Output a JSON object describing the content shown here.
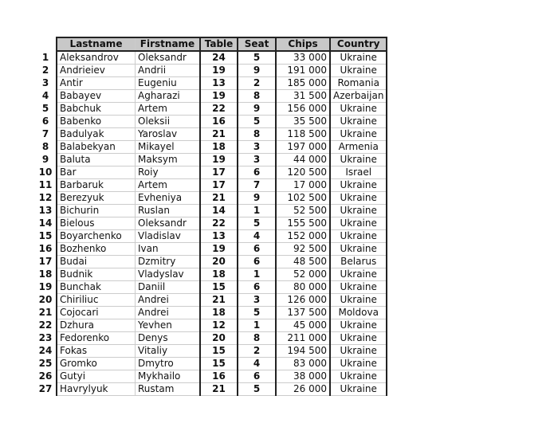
{
  "headers": {
    "lastname": "Lastname",
    "firstname": "Firstname",
    "table": "Table",
    "seat": "Seat",
    "chips": "Chips",
    "country": "Country"
  },
  "rows": [
    [
      "1",
      "Aleksandrov",
      "Oleksandr",
      "24",
      "5",
      "33 000",
      "Ukraine"
    ],
    [
      "2",
      "Andrieiev",
      "Andrii",
      "19",
      "9",
      "191 000",
      "Ukraine"
    ],
    [
      "3",
      "Antir",
      "Eugeniu",
      "13",
      "2",
      "185 000",
      "Romania"
    ],
    [
      "4",
      "Babayev",
      "Agharazi",
      "19",
      "8",
      "31 500",
      "Azerbaijan"
    ],
    [
      "5",
      "Babchuk",
      "Artem",
      "22",
      "9",
      "156 000",
      "Ukraine"
    ],
    [
      "6",
      "Babenko",
      "Oleksii",
      "16",
      "5",
      "35 500",
      "Ukraine"
    ],
    [
      "7",
      "Badulyak",
      "Yaroslav",
      "21",
      "8",
      "118 500",
      "Ukraine"
    ],
    [
      "8",
      "Balabekyan",
      "Mikayel",
      "18",
      "3",
      "197 000",
      "Armenia"
    ],
    [
      "9",
      "Baluta",
      "Maksym",
      "19",
      "3",
      "44 000",
      "Ukraine"
    ],
    [
      "10",
      "Bar",
      "Roiy",
      "17",
      "6",
      "120 500",
      "Israel"
    ],
    [
      "11",
      "Barbaruk",
      "Artem",
      "17",
      "7",
      "17 000",
      "Ukraine"
    ],
    [
      "12",
      "Berezyuk",
      "Evheniya",
      "21",
      "9",
      "102 500",
      "Ukraine"
    ],
    [
      "13",
      "Bichurin",
      "Ruslan",
      "14",
      "1",
      "52 500",
      "Ukraine"
    ],
    [
      "14",
      "Bielous",
      "Oleksandr",
      "22",
      "5",
      "155 500",
      "Ukraine"
    ],
    [
      "15",
      "Boyarchenko",
      "Vladislav",
      "13",
      "4",
      "152 000",
      "Ukraine"
    ],
    [
      "16",
      "Bozhenko",
      "Ivan",
      "19",
      "6",
      "92 500",
      "Ukraine"
    ],
    [
      "17",
      "Budai",
      "Dzmitry",
      "20",
      "6",
      "48 500",
      "Belarus"
    ],
    [
      "18",
      "Budnik",
      "Vladyslav",
      "18",
      "1",
      "52 000",
      "Ukraine"
    ],
    [
      "19",
      "Bunchak",
      "Daniil",
      "15",
      "6",
      "80 000",
      "Ukraine"
    ],
    [
      "20",
      "Chiriliuc",
      "Andrei",
      "21",
      "3",
      "126 000",
      "Ukraine"
    ],
    [
      "21",
      "Cojocari",
      "Andrei",
      "18",
      "5",
      "137 500",
      "Moldova"
    ],
    [
      "22",
      "Dzhura",
      "Yevhen",
      "12",
      "1",
      "45 000",
      "Ukraine"
    ],
    [
      "23",
      "Fedorenko",
      "Denys",
      "20",
      "8",
      "211 000",
      "Ukraine"
    ],
    [
      "24",
      "Fokas",
      "Vitaliy",
      "15",
      "2",
      "194 500",
      "Ukraine"
    ],
    [
      "25",
      "Gromko",
      "Dmytro",
      "15",
      "4",
      "83 000",
      "Ukraine"
    ],
    [
      "26",
      "Gutyi",
      "Mykhailo",
      "16",
      "6",
      "38 000",
      "Ukraine"
    ],
    [
      "27",
      "Havrylyuk",
      "Rustam",
      "21",
      "5",
      "26 000",
      "Ukraine"
    ]
  ]
}
